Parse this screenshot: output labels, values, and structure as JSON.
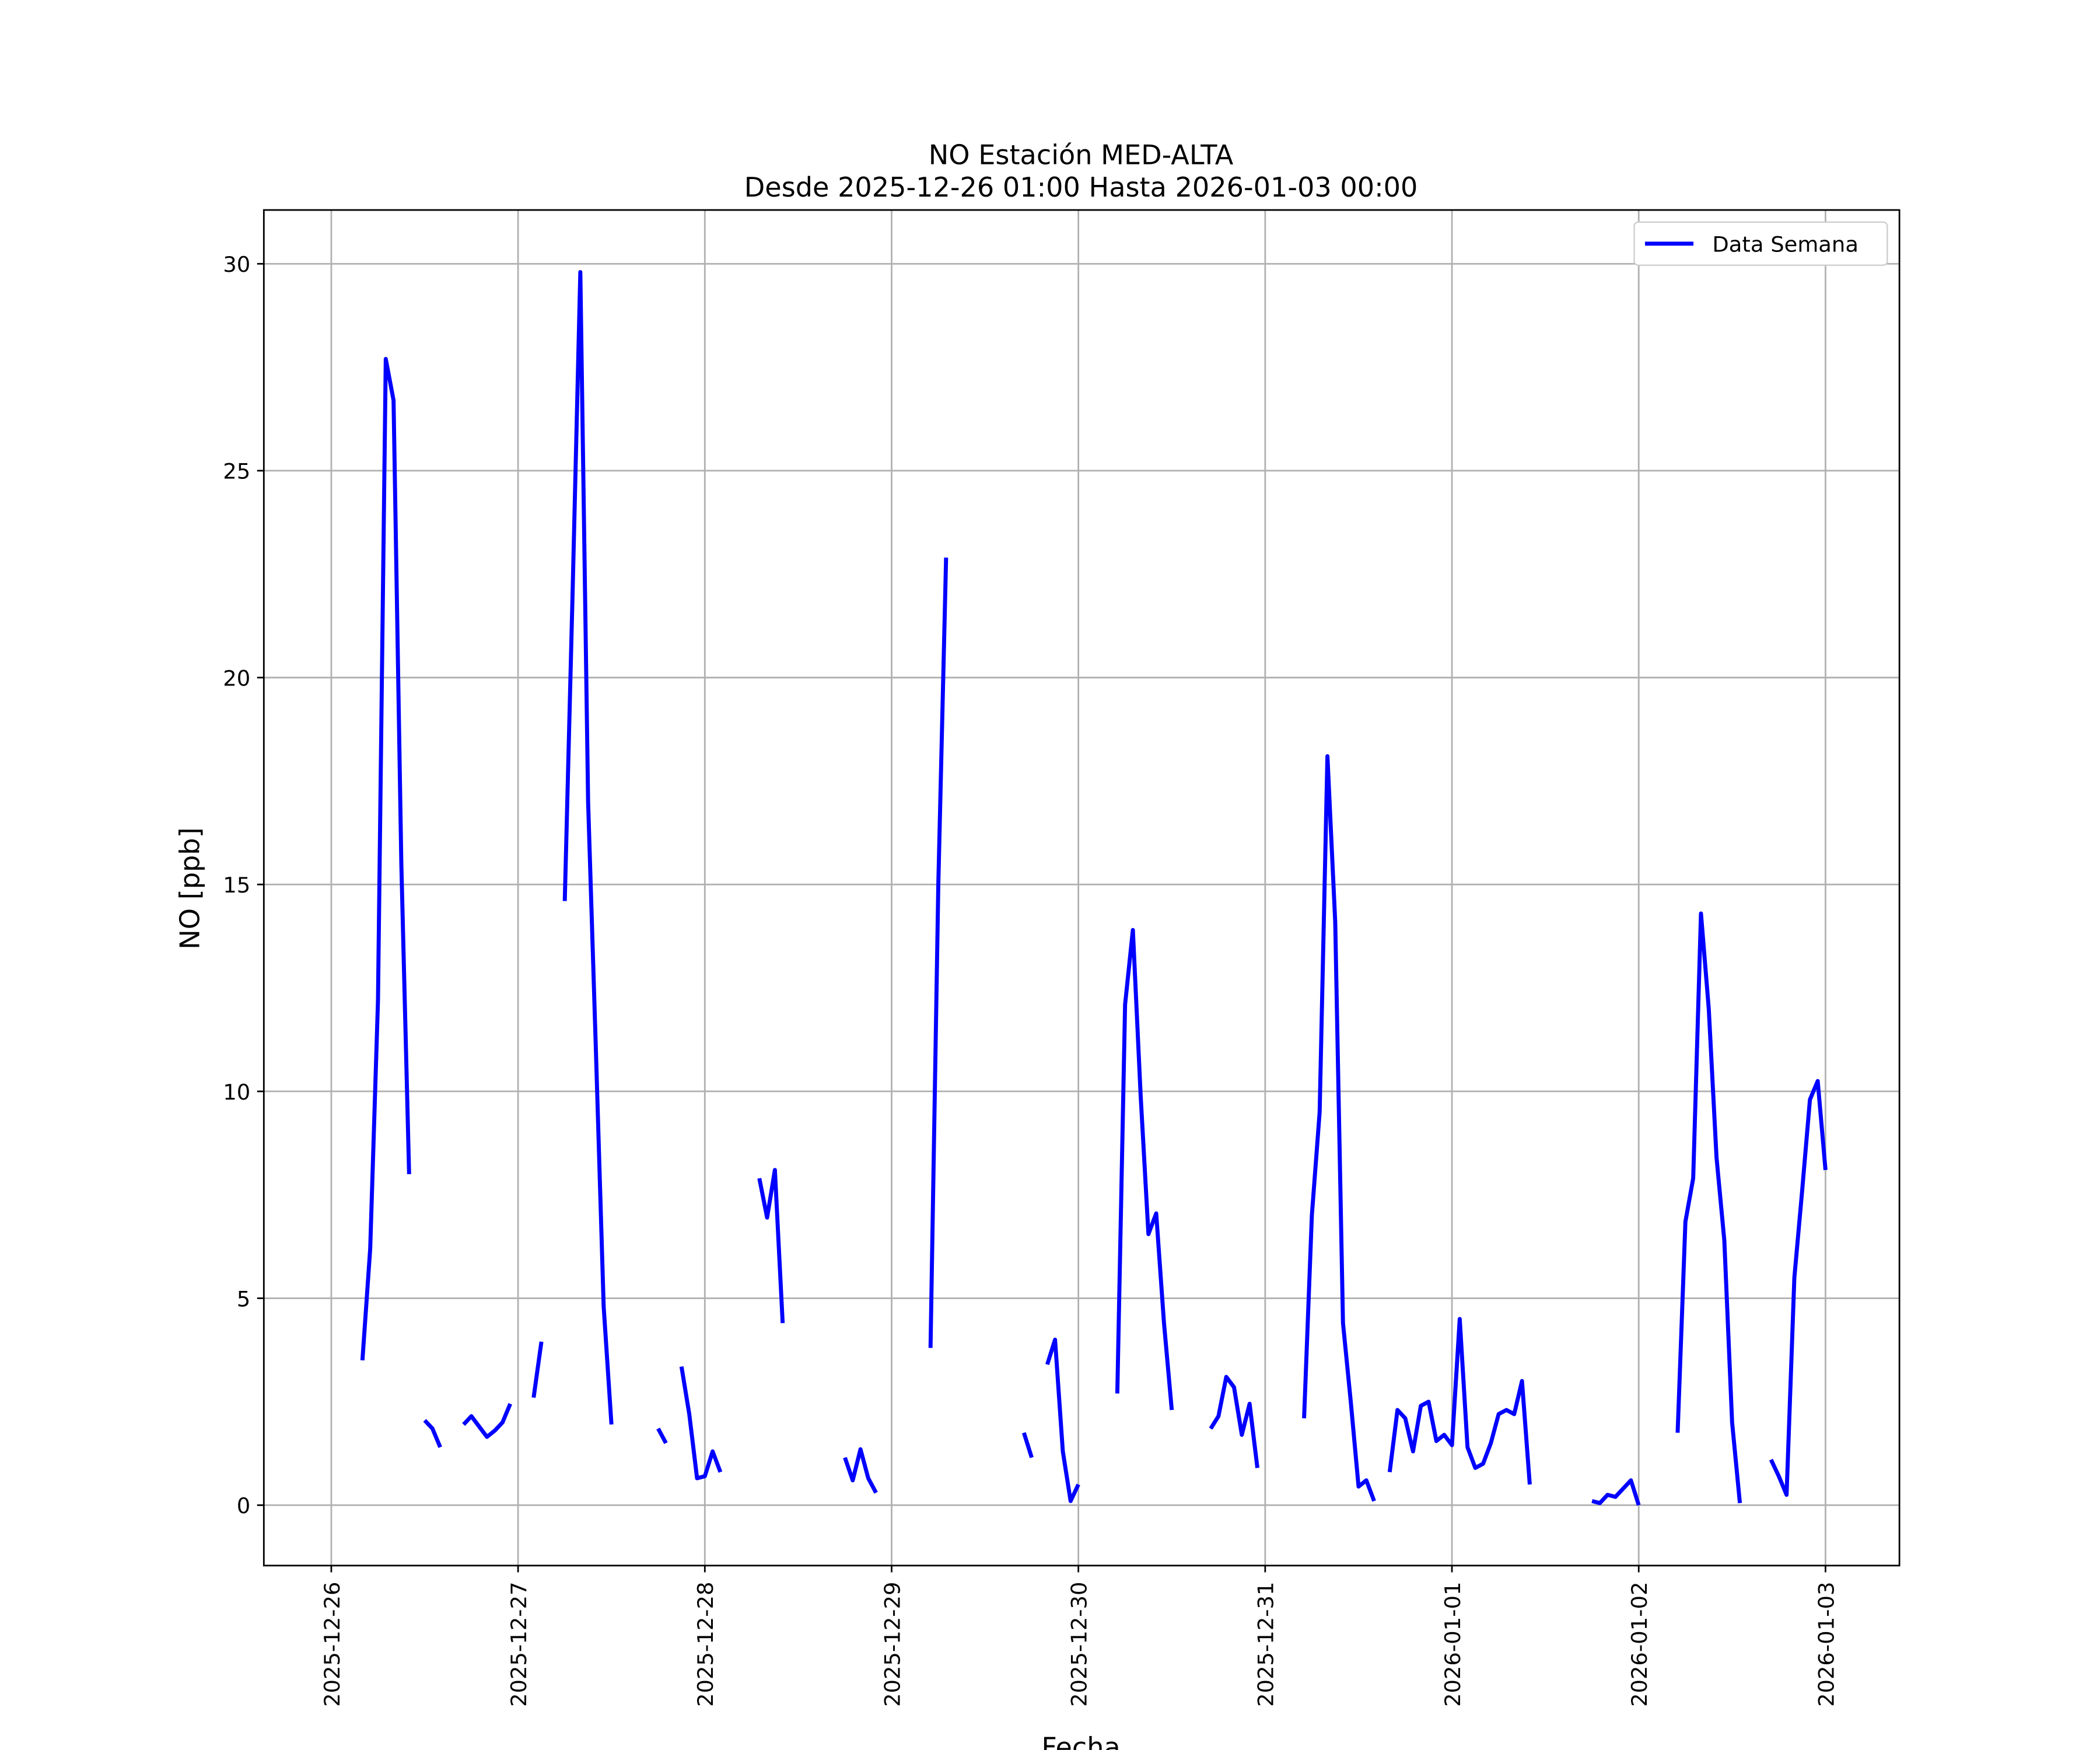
{
  "chart_data": {
    "type": "line",
    "title": "NO Estación MED-ALTA",
    "subtitle": "Desde 2025-12-26 01:00 Hasta 2026-01-03 00:00",
    "xlabel": "Fecha",
    "ylabel": "NO [ppb]",
    "legend": "upper right",
    "grid": true,
    "xlim": [
      "2025-12-25 15:20",
      "2026-01-03 09:30"
    ],
    "xticks": [
      "2025-12-26",
      "2025-12-27",
      "2025-12-28",
      "2025-12-29",
      "2025-12-30",
      "2025-12-31",
      "2026-01-01",
      "2026-01-02",
      "2026-01-03"
    ],
    "ylim": [
      -1.46,
      31.3
    ],
    "yticks": [
      0,
      5,
      10,
      15,
      20,
      25,
      30
    ],
    "x": [
      "2025-12-26 04:00",
      "2025-12-26 05:00",
      "2025-12-26 06:00",
      "2025-12-26 07:00",
      "2025-12-26 08:00",
      "2025-12-26 09:00",
      "2025-12-26 10:00",
      "2025-12-26 11:00",
      "2025-12-26 12:00",
      "2025-12-26 13:00",
      "2025-12-26 14:00",
      "2025-12-26 15:00",
      "2025-12-26 17:00",
      "2025-12-26 18:00",
      "2025-12-26 19:00",
      "2025-12-26 20:00",
      "2025-12-26 21:00",
      "2025-12-26 22:00",
      "2025-12-26 23:00",
      "2025-12-27 00:00",
      "2025-12-27 02:00",
      "2025-12-27 03:00",
      "2025-12-27 04:00",
      "2025-12-27 06:00",
      "2025-12-27 07:00",
      "2025-12-27 08:00",
      "2025-12-27 09:00",
      "2025-12-27 10:00",
      "2025-12-27 11:00",
      "2025-12-27 12:00",
      "2025-12-27 13:00",
      "2025-12-27 18:00",
      "2025-12-27 19:00",
      "2025-12-27 20:00",
      "2025-12-27 21:00",
      "2025-12-27 22:00",
      "2025-12-27 23:00",
      "2025-12-28 00:00",
      "2025-12-28 01:00",
      "2025-12-28 02:00",
      "2025-12-28 03:00",
      "2025-12-28 07:00",
      "2025-12-28 08:00",
      "2025-12-28 09:00",
      "2025-12-28 10:00",
      "2025-12-28 11:00",
      "2025-12-28 18:00",
      "2025-12-28 19:00",
      "2025-12-28 20:00",
      "2025-12-28 21:00",
      "2025-12-28 22:00",
      "2025-12-28 23:00",
      "2025-12-29 05:00",
      "2025-12-29 06:00",
      "2025-12-29 07:00",
      "2025-12-29 08:00",
      "2025-12-29 17:00",
      "2025-12-29 18:00",
      "2025-12-29 19:00",
      "2025-12-29 20:00",
      "2025-12-29 21:00",
      "2025-12-29 22:00",
      "2025-12-29 23:00",
      "2025-12-30 00:00",
      "2025-12-30 01:00",
      "2025-12-30 05:00",
      "2025-12-30 06:00",
      "2025-12-30 07:00",
      "2025-12-30 08:00",
      "2025-12-30 09:00",
      "2025-12-30 10:00",
      "2025-12-30 11:00",
      "2025-12-30 12:00",
      "2025-12-30 13:00",
      "2025-12-30 17:00",
      "2025-12-30 18:00",
      "2025-12-30 19:00",
      "2025-12-30 20:00",
      "2025-12-30 21:00",
      "2025-12-30 22:00",
      "2025-12-30 23:00",
      "2025-12-31 00:00",
      "2025-12-31 05:00",
      "2025-12-31 06:00",
      "2025-12-31 07:00",
      "2025-12-31 08:00",
      "2025-12-31 09:00",
      "2025-12-31 10:00",
      "2025-12-31 11:00",
      "2025-12-31 12:00",
      "2025-12-31 13:00",
      "2025-12-31 14:00",
      "2025-12-31 15:00",
      "2025-12-31 16:00",
      "2025-12-31 17:00",
      "2025-12-31 18:00",
      "2025-12-31 19:00",
      "2025-12-31 20:00",
      "2025-12-31 21:00",
      "2025-12-31 22:00",
      "2025-12-31 23:00",
      "2026-01-01 00:00",
      "2026-01-01 01:00",
      "2026-01-01 02:00",
      "2026-01-01 03:00",
      "2026-01-01 04:00",
      "2026-01-01 05:00",
      "2026-01-01 06:00",
      "2026-01-01 07:00",
      "2026-01-01 08:00",
      "2026-01-01 09:00",
      "2026-01-01 10:00",
      "2026-01-01 11:00",
      "2026-01-01 18:00",
      "2026-01-01 19:00",
      "2026-01-01 20:00",
      "2026-01-01 21:00",
      "2026-01-01 22:00",
      "2026-01-01 23:00",
      "2026-01-02 00:00",
      "2026-01-02 01:00",
      "2026-01-02 05:00",
      "2026-01-02 06:00",
      "2026-01-02 07:00",
      "2026-01-02 08:00",
      "2026-01-02 09:00",
      "2026-01-02 10:00",
      "2026-01-02 11:00",
      "2026-01-02 12:00",
      "2026-01-02 13:00",
      "2026-01-02 14:00",
      "2026-01-02 17:00",
      "2026-01-02 18:00",
      "2026-01-02 19:00",
      "2026-01-02 20:00",
      "2026-01-02 21:00",
      "2026-01-02 22:00",
      "2026-01-02 23:00",
      "2026-01-03 00:00"
    ],
    "series": [
      {
        "name": "Data Semana",
        "color": "#0000ff",
        "values": [
          3.5,
          6.2,
          12.2,
          27.7,
          26.7,
          15.5,
          8.0,
          null,
          2.05,
          1.85,
          1.4,
          null,
          1.95,
          2.15,
          1.9,
          1.65,
          1.8,
          2.0,
          2.45,
          null,
          2.6,
          3.95,
          null,
          14.6,
          22,
          29.8,
          17,
          11,
          4.8,
          1.95,
          null,
          1.85,
          1.5,
          null,
          3.35,
          2.2,
          0.65,
          0.7,
          1.3,
          0.8,
          null,
          7.9,
          6.95,
          8.1,
          4.4,
          null,
          1.15,
          0.6,
          1.35,
          0.65,
          0.3,
          null,
          3.8,
          15,
          22.9,
          null,
          1.75,
          1.15,
          null,
          3.4,
          4.0,
          1.3,
          0.1,
          0.5,
          null,
          2.7,
          12.1,
          13.9,
          9.9,
          6.55,
          7.05,
          4.4,
          2.3,
          null,
          1.85,
          2.15,
          3.1,
          2.85,
          1.7,
          2.45,
          0.9,
          null,
          2.1,
          7.0,
          9.5,
          18.1,
          14.1,
          4.4,
          2.5,
          0.45,
          0.6,
          0.1,
          null,
          0.8,
          2.3,
          2.1,
          1.3,
          2.4,
          2.5,
          1.55,
          1.7,
          1.45,
          4.5,
          1.4,
          0.9,
          1.0,
          1.5,
          2.2,
          2.3,
          2.2,
          3.0,
          0.5,
          null,
          0.1,
          0.05,
          0.25,
          0.2,
          0.4,
          0.6,
          0.0,
          null,
          1.75,
          6.85,
          7.9,
          14.3,
          12.0,
          8.4,
          6.4,
          2.0,
          0.05,
          null,
          1.1,
          0.7,
          0.25,
          5.5,
          7.6,
          9.8,
          10.25,
          8.1
        ]
      }
    ]
  }
}
